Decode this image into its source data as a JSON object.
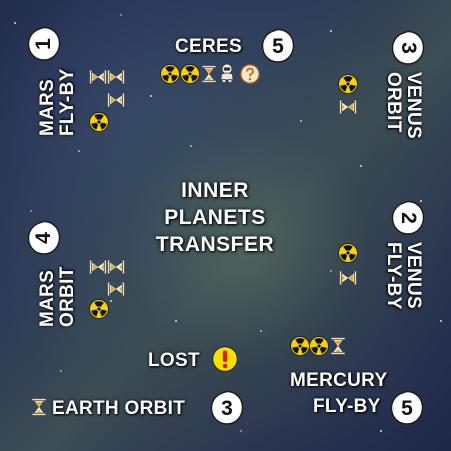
{
  "card": {
    "title_lines": [
      "INNER",
      "PLANETS",
      "TRANSFER"
    ]
  },
  "destinations": {
    "mars_flyby": {
      "label_lines": [
        "MARS",
        "FLY-BY"
      ],
      "cost": "1",
      "icons": [
        "hourglass-icon",
        "hourglass-icon",
        "radiation-icon",
        "hourglass-icon"
      ]
    },
    "ceres": {
      "label": "CERES",
      "cost": "5",
      "icons": [
        "radiation-icon",
        "hourglass-icon",
        "astronaut-icon",
        "question-icon"
      ]
    },
    "venus_orbit": {
      "label_lines": [
        "VENUS",
        "ORBIT"
      ],
      "cost": "3",
      "icons": [
        "radiation-icon",
        "hourglass-icon"
      ]
    },
    "mars_orbit": {
      "label_lines": [
        "MARS",
        "ORBIT"
      ],
      "cost": "4",
      "icons": [
        "hourglass-icon",
        "hourglass-icon",
        "radiation-icon"
      ]
    },
    "venus_flyby": {
      "label_lines": [
        "VENUS",
        "FLY-BY"
      ],
      "cost": "2",
      "icons": [
        "radiation-icon",
        "hourglass-icon"
      ]
    },
    "lost": {
      "label": "LOST",
      "icons": [
        "exclamation-icon"
      ]
    },
    "mercury_flyby": {
      "label_lines": [
        "MERCURY",
        "FLY-BY"
      ],
      "cost": "5",
      "icons": [
        "radiation-icon",
        "hourglass-icon"
      ]
    },
    "earth_orbit": {
      "label": "EARTH ORBIT",
      "cost": "3",
      "icons": [
        "hourglass-icon"
      ]
    }
  },
  "colors": {
    "badge_fill": "#ffffff",
    "badge_text": "#111111",
    "radiation_yellow": "#f5d10a",
    "warning_yellow": "#f6e000",
    "warning_mark": "#d41e1e"
  }
}
